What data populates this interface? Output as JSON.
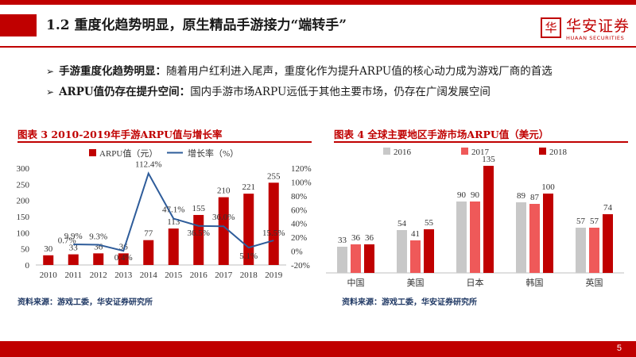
{
  "header": {
    "title": "1.2 重度化趋势明显，原生精品手游接力“端转手”",
    "logo_cn": "华安证券",
    "logo_en": "HUAAN SECURITIES",
    "logo_seal": "华"
  },
  "bullets": [
    {
      "marker": "➢",
      "bold": "手游重度化趋势明显：",
      "text": "随着用户红利进入尾声，重度化作为提升ARPU值的核心动力成为游戏厂商的首选"
    },
    {
      "marker": "➢",
      "bold": "ARPU值仍存在提升空间：",
      "text": "国内手游市场ARPU远低于其他主要市场，仍存在广阔发展空间"
    }
  ],
  "chart1": {
    "title": "图表 3  2010-2019年手游ARPU值与增长率",
    "source": "资料来源：游戏工委，华安证券研究所"
  },
  "chart2": {
    "title": "图表 4  全球主要地区手游市场ARPU值（美元）",
    "source": "资料来源：游戏工委，华安证券研究所"
  },
  "page_number": "5",
  "colors": {
    "accent": "#c00000",
    "line": "#2e5c9a",
    "gray": "#c8c8c8",
    "mid_red": "#ef5959",
    "dark_red": "#c00000"
  },
  "chart_data": [
    {
      "type": "bar+line",
      "title": "图表 3  2010-2019年手游ARPU值与增长率",
      "categories": [
        "2010",
        "2011",
        "2012",
        "2013",
        "2014",
        "2015",
        "2016",
        "2017",
        "2018",
        "2019"
      ],
      "series": [
        {
          "name": "ARPU值（元）",
          "type": "bar",
          "axis": "left",
          "values": [
            30,
            33,
            36,
            36,
            77,
            113,
            155,
            210,
            221,
            255
          ],
          "labels": [
            "30",
            "33",
            "36",
            "36",
            "77",
            "113",
            "155",
            "210",
            "221",
            "255"
          ]
        },
        {
          "name": "增长率（%）",
          "type": "line",
          "axis": "right",
          "values": [
            null,
            9.9,
            9.3,
            0.4,
            112.4,
            47.1,
            36.5,
            36.0,
            5.1,
            15.5
          ],
          "labels": [
            "",
            "9.9%",
            "9.3%",
            "0.4%",
            "112.4%",
            "47.1%",
            "36.5%",
            "36.0%",
            "5.1%",
            "15.5%"
          ]
        }
      ],
      "extra_labels": [
        {
          "text": "0.7%",
          "category": "2011"
        }
      ],
      "y_left": {
        "min": 0,
        "max": 300,
        "ticks": [
          0,
          50,
          100,
          150,
          200,
          250,
          300
        ]
      },
      "y_right": {
        "min": -20,
        "max": 120,
        "ticks": [
          "-20%",
          "0%",
          "20%",
          "40%",
          "60%",
          "80%",
          "100%",
          "120%"
        ],
        "tick_values": [
          -20,
          0,
          20,
          40,
          60,
          80,
          100,
          120
        ]
      },
      "legend": "top"
    },
    {
      "type": "bar",
      "title": "图表 4  全球主要地区手游市场ARPU值（美元）",
      "categories": [
        "中国",
        "美国",
        "日本",
        "韩国",
        "英国"
      ],
      "series": [
        {
          "name": "2016",
          "values": [
            33,
            54,
            90,
            89,
            57
          ]
        },
        {
          "name": "2017",
          "values": [
            36,
            41,
            90,
            87,
            57
          ]
        },
        {
          "name": "2018",
          "values": [
            36,
            55,
            135,
            100,
            74
          ]
        }
      ],
      "y_range": [
        0,
        150
      ],
      "legend": "top"
    }
  ]
}
